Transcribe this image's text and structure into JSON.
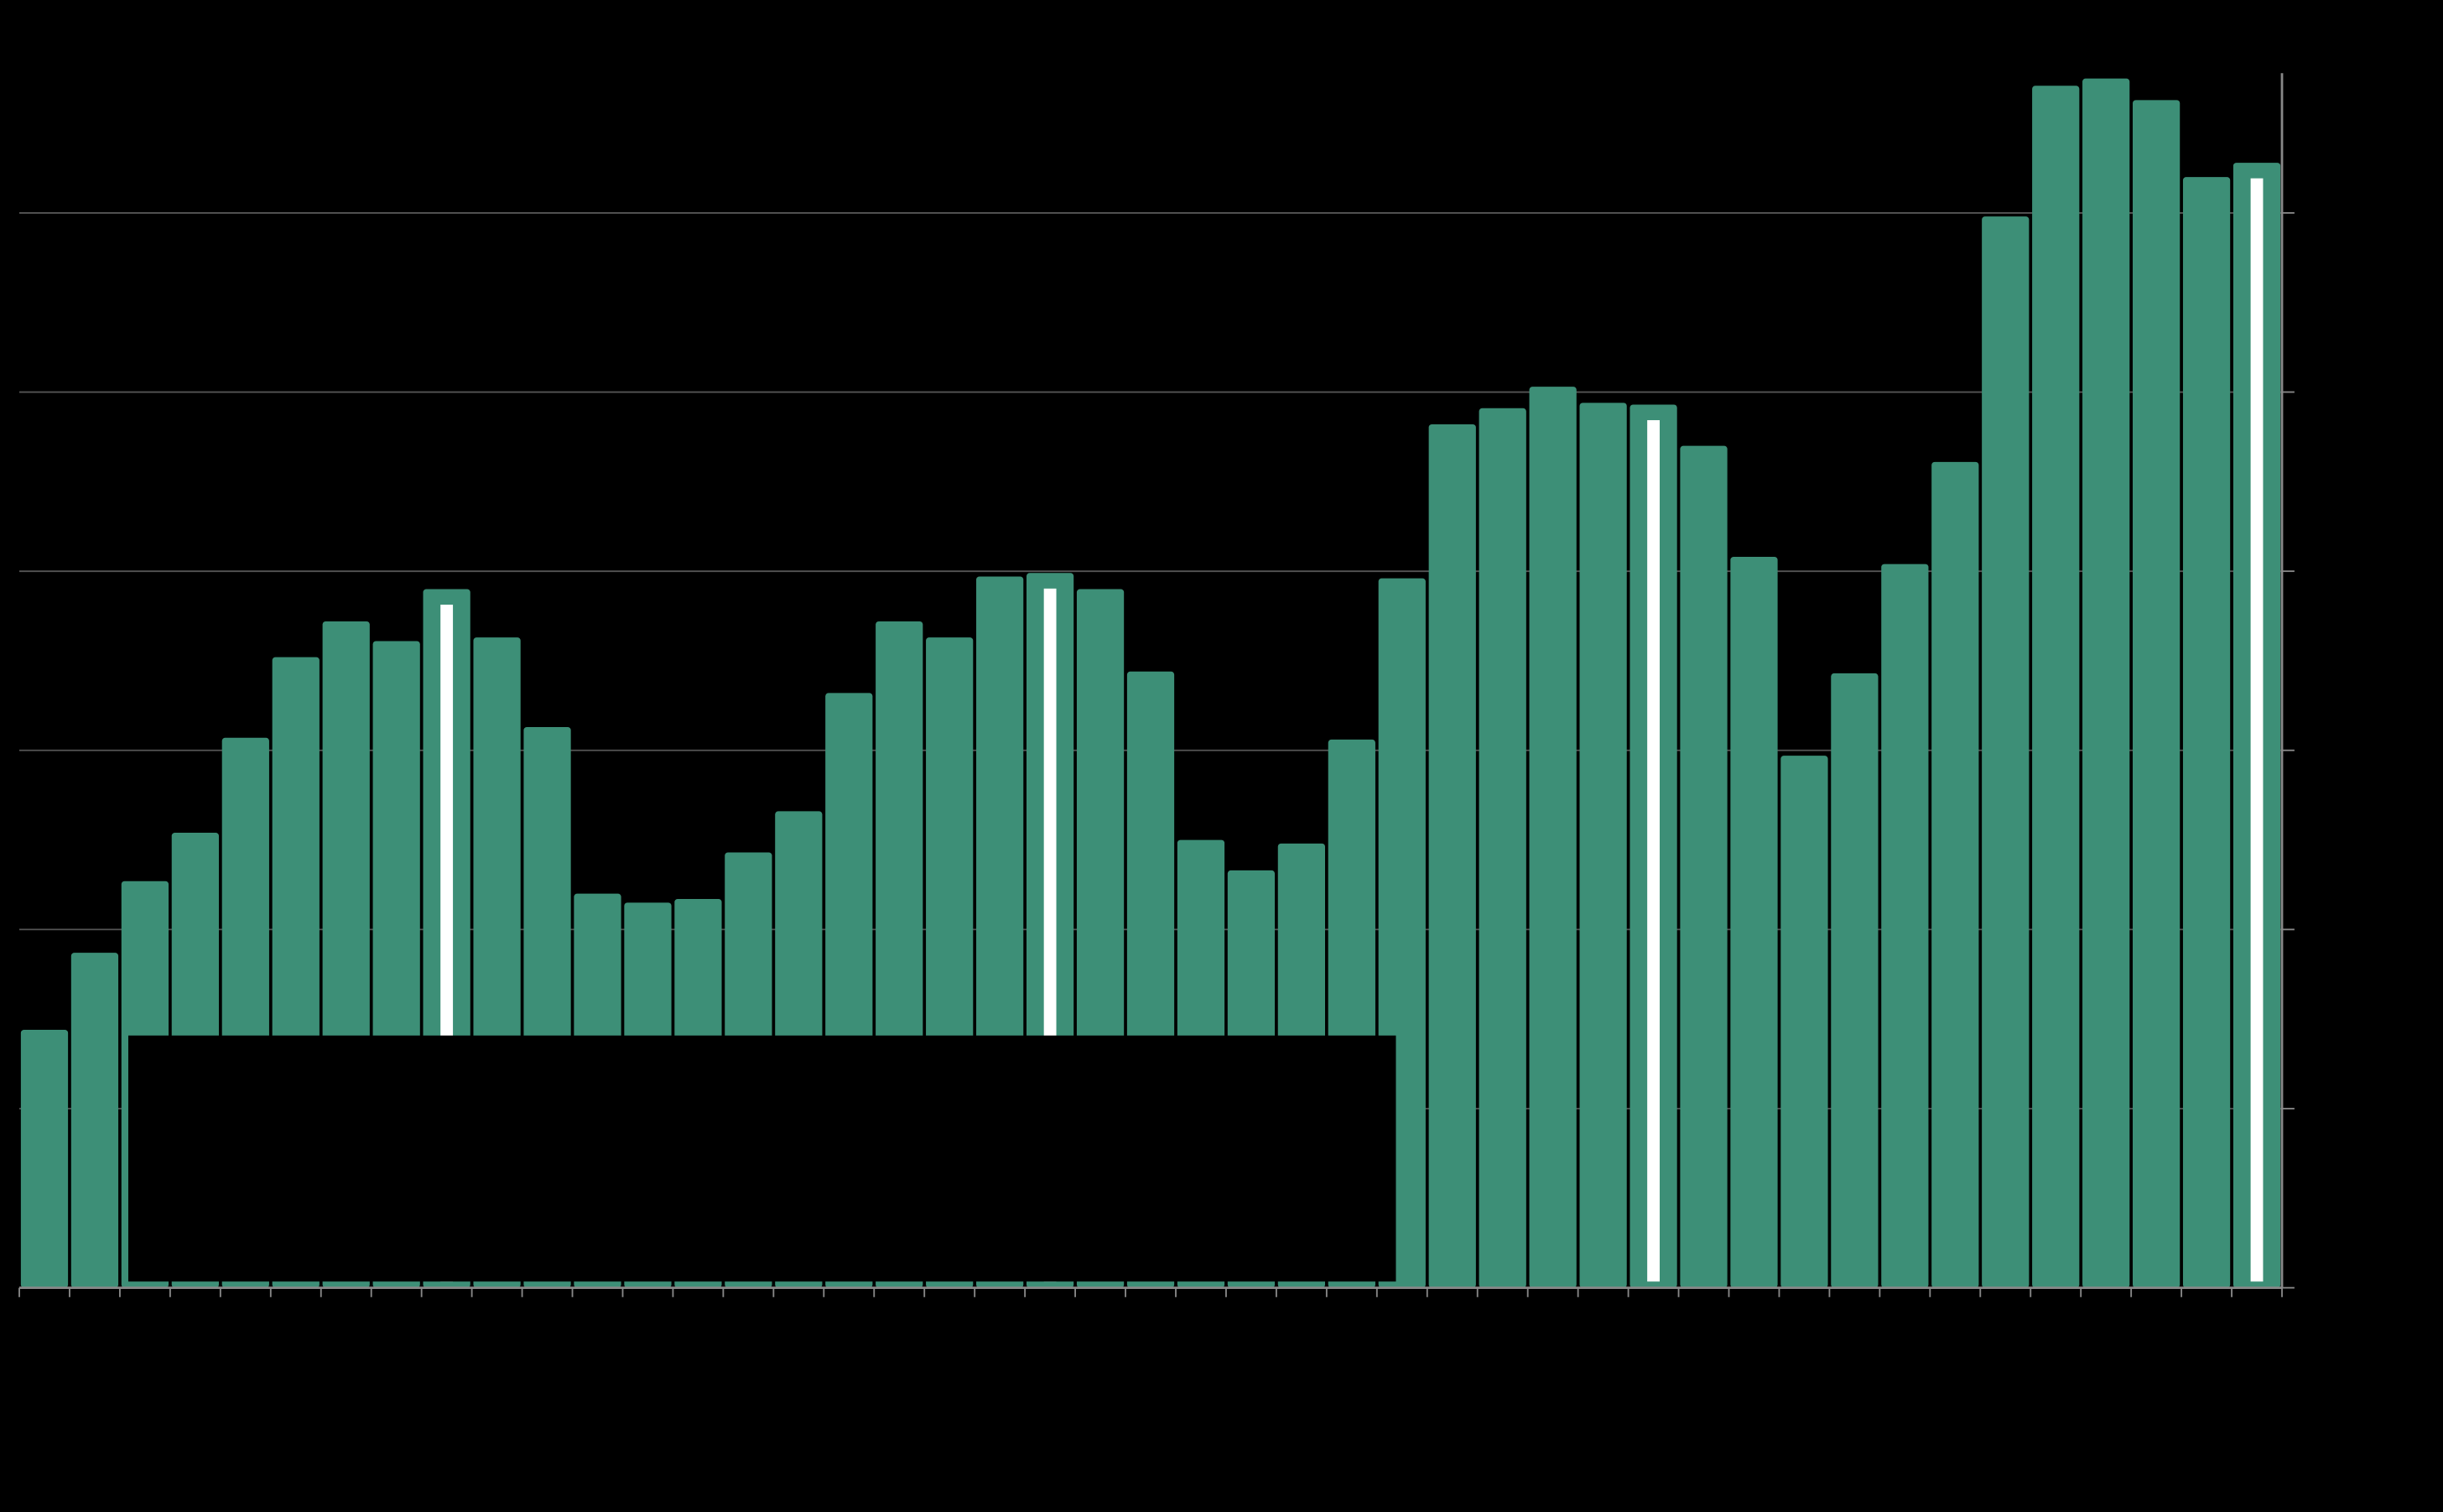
{
  "chart_data": {
    "type": "bar",
    "categories": [
      null,
      null,
      null,
      null,
      null,
      null,
      null,
      null,
      null,
      null,
      null,
      null,
      null,
      null,
      null,
      null,
      null,
      null,
      null,
      null,
      null,
      null,
      null,
      null,
      null,
      null,
      null,
      null,
      null,
      null,
      null,
      null,
      null,
      null,
      null,
      null,
      null,
      null,
      null,
      null,
      null,
      null,
      null,
      null,
      null
    ],
    "values": [
      1.44,
      1.87,
      2.27,
      2.54,
      3.07,
      3.52,
      3.72,
      3.61,
      3.9,
      3.63,
      3.13,
      2.2,
      2.15,
      2.17,
      2.43,
      2.66,
      3.32,
      3.72,
      3.63,
      3.97,
      3.99,
      3.9,
      3.44,
      2.5,
      2.33,
      2.48,
      3.06,
      3.96,
      4.82,
      4.91,
      5.03,
      4.94,
      4.93,
      4.7,
      4.08,
      2.97,
      3.43,
      4.04,
      4.61,
      5.98,
      6.71,
      6.75,
      6.63,
      6.2,
      6.28
    ],
    "color": "#3d8f77",
    "highlight": [
      8,
      20,
      32,
      44
    ],
    "highlight_color": "#ffffff",
    "ylim": [
      0,
      6.78
    ],
    "yticks": [
      0,
      1,
      2,
      3,
      4,
      5,
      6
    ],
    "grid": true
  }
}
